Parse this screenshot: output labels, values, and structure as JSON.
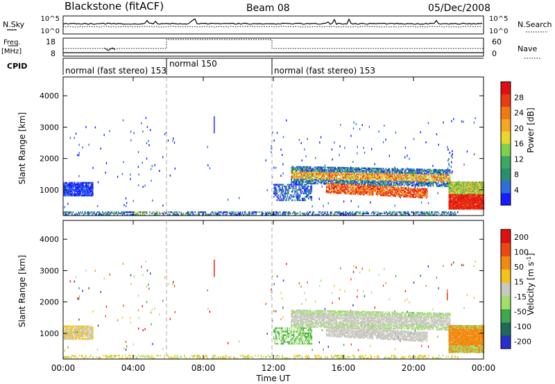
{
  "header": {
    "station": "Blackstone (fitACF)",
    "beam": "Beam 08",
    "date": "05/Dec/2008"
  },
  "top_panels": {
    "nsky_label": "N.Sky",
    "nsky_ticks": [
      "10^5",
      "10^0"
    ],
    "nsearch_label": "N.Search",
    "nsearch_ticks": [
      "10^5",
      "10^0"
    ],
    "freq_label": "Freq.",
    "freq_unit": "[MHz]",
    "freq_ticks": [
      "18",
      "8"
    ],
    "nave_label": "Nave",
    "nave_ticks": [
      "60",
      "0"
    ],
    "cpid_label": "CPID",
    "cpid_segments": [
      {
        "label": "normal (fast stereo) 153",
        "start": 0,
        "end": 6
      },
      {
        "label": "normal 150",
        "start": 6,
        "end": 12
      },
      {
        "label": "normal (fast stereo) 153",
        "start": 12,
        "end": 24
      }
    ]
  },
  "colors": {
    "power": [
      "#1a1aff",
      "#2e6edc",
      "#2a8f6b",
      "#3aa860",
      "#7fd04a",
      "#e9d82c",
      "#f5a623",
      "#f07a10",
      "#ea3b12",
      "#e01010"
    ],
    "velocity": [
      "#2630c8",
      "#206a58",
      "#3fa84a",
      "#9ee06a",
      "#c8c8c0",
      "#f6c21a",
      "#f08a10",
      "#ea4a10",
      "#e01010"
    ]
  },
  "chart_data": [
    {
      "type": "heatmap",
      "name": "power",
      "xlabel": "",
      "ylabel": "Slant Range [km]",
      "xlim": [
        0,
        24
      ],
      "ylim": [
        180,
        4600
      ],
      "y_ticks": [
        1000,
        2000,
        3000,
        4000
      ],
      "colorbar_label": "Power [dB]",
      "colorbar_ticks": [
        "28",
        "24",
        "20",
        "16",
        "12",
        "8",
        "4"
      ],
      "colorbar_range": [
        0,
        30
      ]
    },
    {
      "type": "heatmap",
      "name": "velocity",
      "xlabel": "Time UT",
      "ylabel": "Slant Range [km]",
      "xlim": [
        0,
        24
      ],
      "ylim": [
        180,
        4600
      ],
      "x_ticks": [
        "00:00",
        "04:00",
        "08:00",
        "12:00",
        "16:00",
        "20:00",
        "00:00"
      ],
      "y_ticks": [
        1000,
        2000,
        3000,
        4000
      ],
      "colorbar_label": "Velocity [m s",
      "colorbar_label_exp": "-1",
      "colorbar_label_end": "]",
      "colorbar_ticks": [
        "200",
        "100",
        "50",
        "15",
        "-15",
        "-50",
        "-100",
        "-200"
      ]
    }
  ]
}
